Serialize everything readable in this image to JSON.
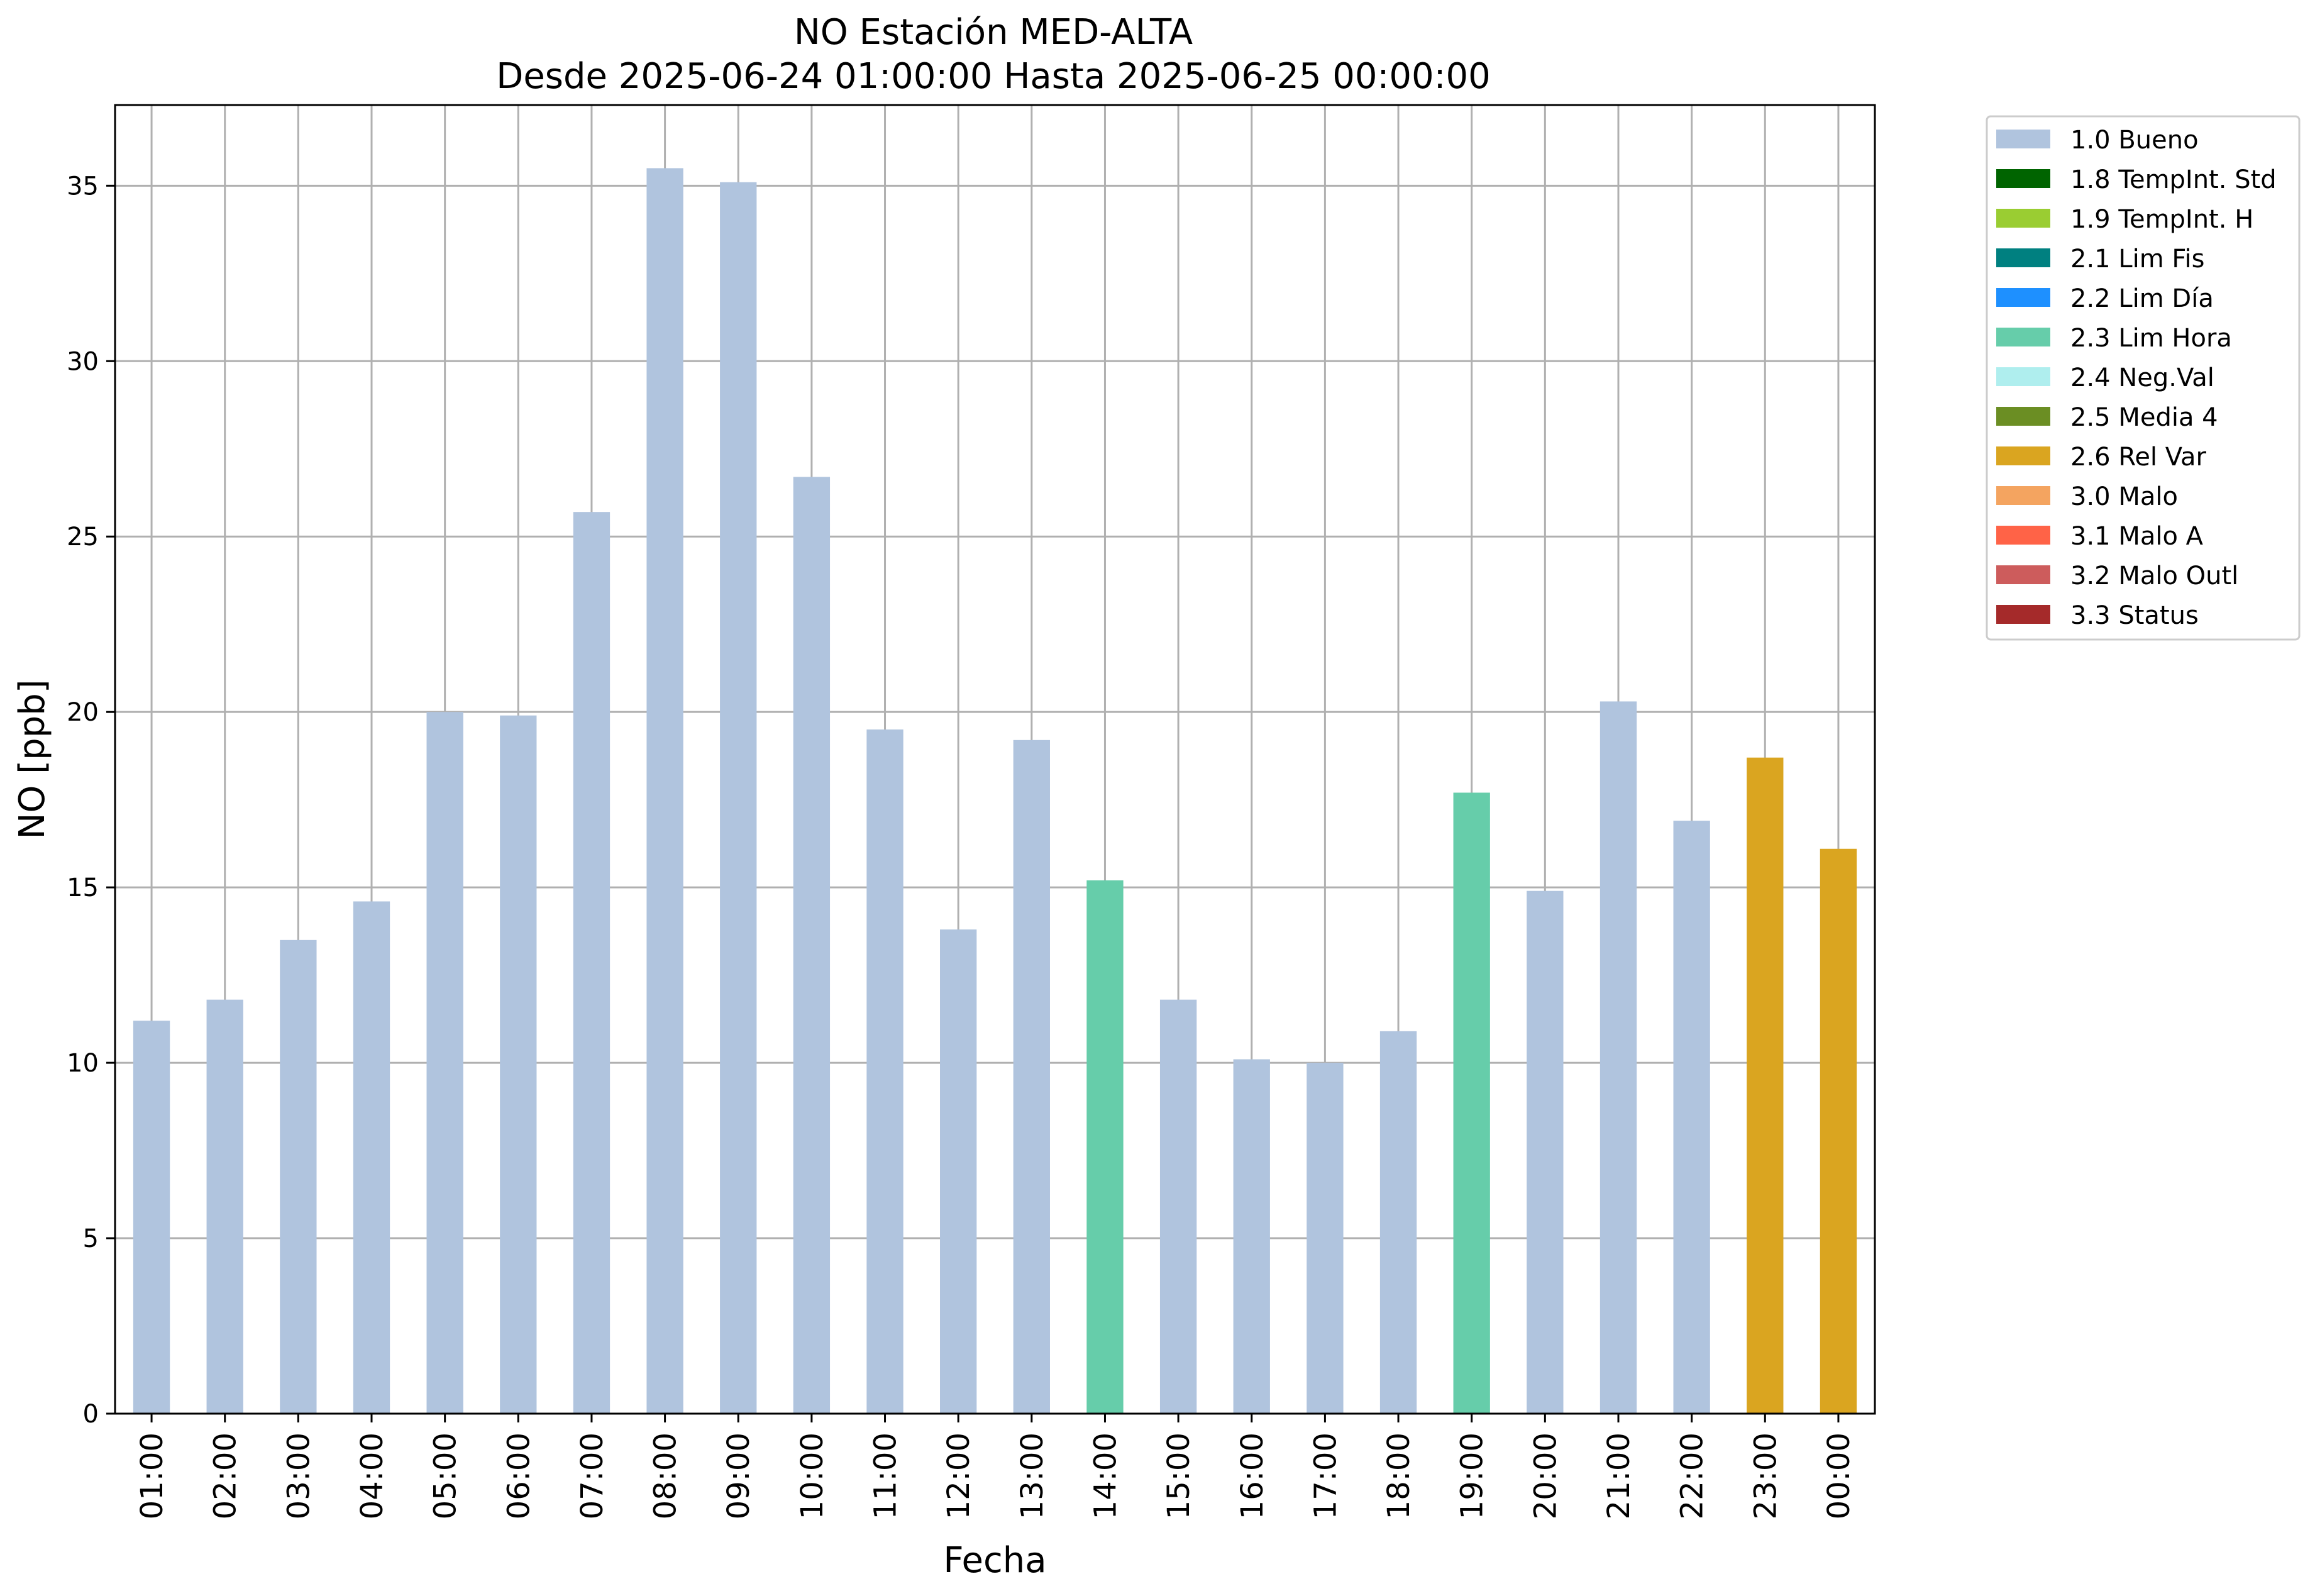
{
  "chart_data": {
    "type": "bar",
    "title": "NO Estación MED-ALTA",
    "subtitle": "Desde 2025-06-24 01:00:00 Hasta 2025-06-25 00:00:00",
    "xlabel": "Fecha",
    "ylabel": "NO [ppb]",
    "ylim": [
      0,
      37.3
    ],
    "yticks": [
      0,
      5,
      10,
      15,
      20,
      25,
      30,
      35
    ],
    "grid": true,
    "legend_position": "outside-top-right",
    "categories": [
      "01:00",
      "02:00",
      "03:00",
      "04:00",
      "05:00",
      "06:00",
      "07:00",
      "08:00",
      "09:00",
      "10:00",
      "11:00",
      "12:00",
      "13:00",
      "14:00",
      "15:00",
      "16:00",
      "17:00",
      "18:00",
      "19:00",
      "20:00",
      "21:00",
      "22:00",
      "23:00",
      "00:00"
    ],
    "values": [
      11.2,
      11.8,
      13.5,
      14.6,
      20.0,
      19.9,
      25.7,
      35.5,
      35.1,
      26.7,
      19.5,
      13.8,
      19.2,
      15.2,
      11.8,
      10.1,
      10.0,
      10.9,
      17.7,
      14.9,
      20.3,
      16.9,
      18.7,
      16.1
    ],
    "flags": [
      "1.0 Bueno",
      "1.0 Bueno",
      "1.0 Bueno",
      "1.0 Bueno",
      "1.0 Bueno",
      "1.0 Bueno",
      "1.0 Bueno",
      "1.0 Bueno",
      "1.0 Bueno",
      "1.0 Bueno",
      "1.0 Bueno",
      "1.0 Bueno",
      "1.0 Bueno",
      "2.3 Lim Hora",
      "1.0 Bueno",
      "1.0 Bueno",
      "1.0 Bueno",
      "1.0 Bueno",
      "2.3 Lim Hora",
      "1.0 Bueno",
      "1.0 Bueno",
      "1.0 Bueno",
      "2.6 Rel Var",
      "2.6 Rel Var"
    ],
    "legend": [
      {
        "name": "1.0 Bueno",
        "color": "#b0c4de"
      },
      {
        "name": "1.8 TempInt. Std",
        "color": "#006400"
      },
      {
        "name": "1.9 TempInt. H",
        "color": "#9acd32"
      },
      {
        "name": "2.1 Lim Fis",
        "color": "#008080"
      },
      {
        "name": "2.2 Lim Día",
        "color": "#1e90ff"
      },
      {
        "name": "2.3 Lim Hora",
        "color": "#66cdaa"
      },
      {
        "name": "2.4 Neg.Val",
        "color": "#afeeee"
      },
      {
        "name": "2.5 Media 4",
        "color": "#6b8e23"
      },
      {
        "name": "2.6 Rel Var",
        "color": "#daa520"
      },
      {
        "name": "3.0 Malo",
        "color": "#f4a460"
      },
      {
        "name": "3.1 Malo A",
        "color": "#ff6347"
      },
      {
        "name": "3.2 Malo Outl",
        "color": "#cd5c5c"
      },
      {
        "name": "3.3 Status",
        "color": "#a52a2a"
      }
    ]
  }
}
